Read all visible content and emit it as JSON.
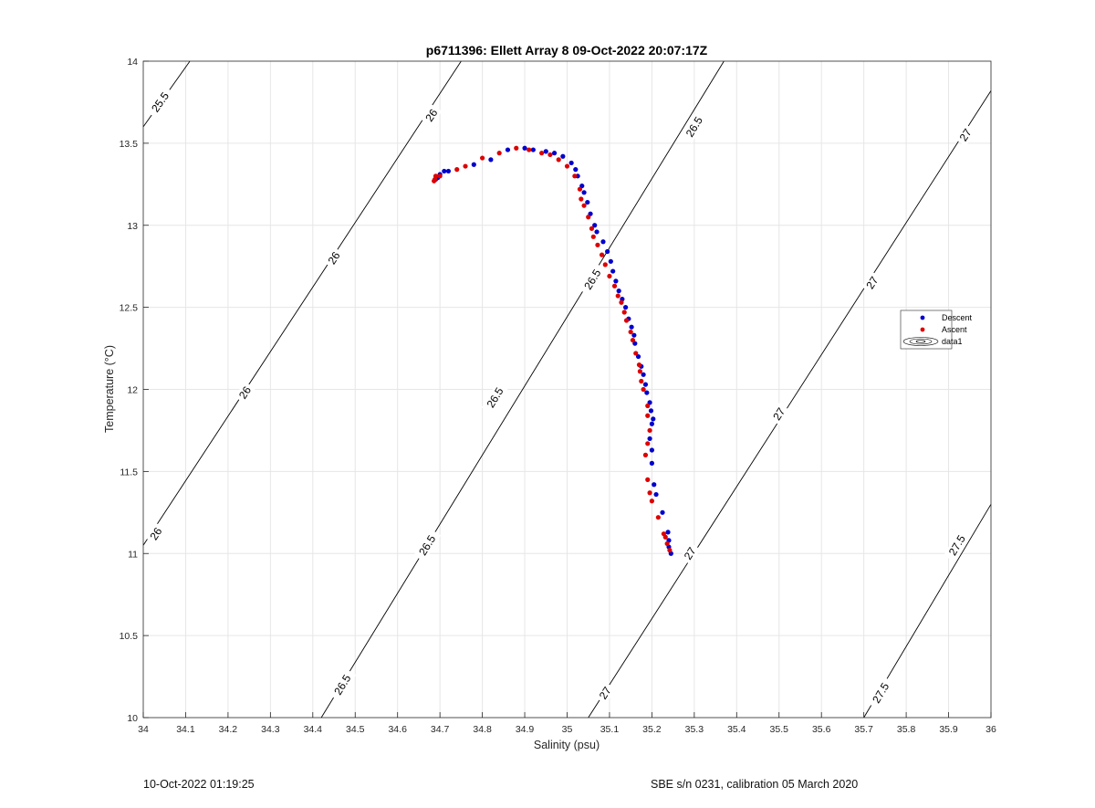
{
  "chart_data": {
    "type": "scatter",
    "title": "p6711396: Ellett Array 8 09-Oct-2022 20:07:17Z",
    "xlabel": "Salinity (psu)",
    "ylabel": "Temperature (°C)",
    "xlim": [
      34,
      36
    ],
    "ylim": [
      10,
      14
    ],
    "xticks": [
      34,
      34.1,
      34.2,
      34.3,
      34.4,
      34.5,
      34.6,
      34.7,
      34.8,
      34.9,
      35,
      35.1,
      35.2,
      35.3,
      35.4,
      35.5,
      35.6,
      35.7,
      35.8,
      35.9,
      36
    ],
    "xtick_labels": [
      "34",
      "34.1",
      "34.2",
      "34.3",
      "34.4",
      "34.5",
      "34.6",
      "34.7",
      "34.8",
      "34.9",
      "35",
      "35.1",
      "35.2",
      "35.3",
      "35.4",
      "35.5",
      "35.6",
      "35.7",
      "35.8",
      "35.9",
      "36"
    ],
    "yticks": [
      10,
      10.5,
      11,
      11.5,
      12,
      12.5,
      13,
      13.5,
      14
    ],
    "ytick_labels": [
      "10",
      "10.5",
      "11",
      "11.5",
      "12",
      "12.5",
      "13",
      "13.5",
      "14"
    ],
    "grid": true,
    "legend_position": "right",
    "series": [
      {
        "name": "Descent",
        "color": "#0000cc",
        "points": [
          [
            35.245,
            11.0
          ],
          [
            35.24,
            11.04
          ],
          [
            35.24,
            11.08
          ],
          [
            35.238,
            11.13
          ],
          [
            35.225,
            11.25
          ],
          [
            35.21,
            11.36
          ],
          [
            35.205,
            11.42
          ],
          [
            35.2,
            11.55
          ],
          [
            35.2,
            11.63
          ],
          [
            35.195,
            11.7
          ],
          [
            35.2,
            11.79
          ],
          [
            35.203,
            11.82
          ],
          [
            35.198,
            11.87
          ],
          [
            35.195,
            11.92
          ],
          [
            35.188,
            11.98
          ],
          [
            35.185,
            12.03
          ],
          [
            35.18,
            12.09
          ],
          [
            35.175,
            12.14
          ],
          [
            35.168,
            12.2
          ],
          [
            35.16,
            12.28
          ],
          [
            35.158,
            12.33
          ],
          [
            35.152,
            12.38
          ],
          [
            35.145,
            12.43
          ],
          [
            35.138,
            12.5
          ],
          [
            35.13,
            12.55
          ],
          [
            35.122,
            12.6
          ],
          [
            35.115,
            12.66
          ],
          [
            35.108,
            12.72
          ],
          [
            35.103,
            12.78
          ],
          [
            35.095,
            12.84
          ],
          [
            35.085,
            12.9
          ],
          [
            35.07,
            12.96
          ],
          [
            35.065,
            13.0
          ],
          [
            35.055,
            13.07
          ],
          [
            35.048,
            13.14
          ],
          [
            35.04,
            13.2
          ],
          [
            35.035,
            13.24
          ],
          [
            35.025,
            13.3
          ],
          [
            35.02,
            13.34
          ],
          [
            35.01,
            13.38
          ],
          [
            34.99,
            13.42
          ],
          [
            34.97,
            13.44
          ],
          [
            34.95,
            13.45
          ],
          [
            34.92,
            13.46
          ],
          [
            34.9,
            13.47
          ],
          [
            34.86,
            13.46
          ],
          [
            34.82,
            13.4
          ],
          [
            34.78,
            13.37
          ],
          [
            34.72,
            13.33
          ],
          [
            34.71,
            13.33
          ],
          [
            34.7,
            13.31
          ],
          [
            34.695,
            13.29
          ],
          [
            34.69,
            13.28
          ]
        ]
      },
      {
        "name": "Ascent",
        "color": "#dd0000",
        "points": [
          [
            35.242,
            11.02
          ],
          [
            35.236,
            11.06
          ],
          [
            35.232,
            11.1
          ],
          [
            35.228,
            11.12
          ],
          [
            35.215,
            11.22
          ],
          [
            35.2,
            11.32
          ],
          [
            35.195,
            11.37
          ],
          [
            35.19,
            11.45
          ],
          [
            35.185,
            11.6
          ],
          [
            35.19,
            11.67
          ],
          [
            35.195,
            11.75
          ],
          [
            35.19,
            11.84
          ],
          [
            35.19,
            11.9
          ],
          [
            35.18,
            12.0
          ],
          [
            35.175,
            12.05
          ],
          [
            35.172,
            12.11
          ],
          [
            35.17,
            12.15
          ],
          [
            35.162,
            12.22
          ],
          [
            35.155,
            12.3
          ],
          [
            35.15,
            12.35
          ],
          [
            35.14,
            12.42
          ],
          [
            35.135,
            12.47
          ],
          [
            35.128,
            12.53
          ],
          [
            35.12,
            12.57
          ],
          [
            35.112,
            12.63
          ],
          [
            35.1,
            12.69
          ],
          [
            35.09,
            12.76
          ],
          [
            35.082,
            12.82
          ],
          [
            35.072,
            12.88
          ],
          [
            35.062,
            12.93
          ],
          [
            35.058,
            12.98
          ],
          [
            35.05,
            13.05
          ],
          [
            35.04,
            13.12
          ],
          [
            35.033,
            13.16
          ],
          [
            35.03,
            13.22
          ],
          [
            35.018,
            13.3
          ],
          [
            35.0,
            13.36
          ],
          [
            34.98,
            13.4
          ],
          [
            34.96,
            13.43
          ],
          [
            34.94,
            13.44
          ],
          [
            34.91,
            13.46
          ],
          [
            34.88,
            13.47
          ],
          [
            34.84,
            13.44
          ],
          [
            34.8,
            13.41
          ],
          [
            34.76,
            13.36
          ],
          [
            34.74,
            13.34
          ],
          [
            34.7,
            13.3
          ],
          [
            34.69,
            13.3
          ],
          [
            34.688,
            13.28
          ],
          [
            34.686,
            13.27
          ]
        ]
      },
      {
        "name": "data1",
        "kind": "contour",
        "color": "#000000",
        "sigma_levels": [
          25.5,
          26,
          26.5,
          27,
          27.5
        ],
        "lines": [
          {
            "level": "25.5",
            "points": [
              [
                34.0,
                13.6
              ],
              [
                34.11,
                14.0
              ]
            ]
          },
          {
            "level": "26",
            "points": [
              [
                34.0,
                11.05
              ],
              [
                34.75,
                14.0
              ]
            ]
          },
          {
            "level": "26.5",
            "points": [
              [
                34.42,
                10.0
              ],
              [
                35.37,
                14.0
              ]
            ]
          },
          {
            "level": "27",
            "points": [
              [
                35.05,
                10.0
              ],
              [
                36.0,
                13.82
              ]
            ]
          },
          {
            "level": "27.5",
            "points": [
              [
                35.7,
                10.0
              ],
              [
                36.0,
                11.3
              ]
            ]
          }
        ],
        "labels": [
          {
            "text": "25.5",
            "at": [
              34.04,
              13.75
            ]
          },
          {
            "text": "26",
            "at": [
              34.68,
              13.67
            ]
          },
          {
            "text": "26",
            "at": [
              34.45,
              12.8
            ]
          },
          {
            "text": "26",
            "at": [
              34.24,
              11.98
            ]
          },
          {
            "text": "26",
            "at": [
              34.03,
              11.12
            ]
          },
          {
            "text": "26.5",
            "at": [
              35.3,
              13.6
            ]
          },
          {
            "text": "26.5",
            "at": [
              35.06,
              12.67
            ]
          },
          {
            "text": "26.5",
            "at": [
              34.83,
              11.95
            ]
          },
          {
            "text": "26.5",
            "at": [
              34.67,
              11.05
            ]
          },
          {
            "text": "26.5",
            "at": [
              34.47,
              10.2
            ]
          },
          {
            "text": "27",
            "at": [
              35.94,
              13.55
            ]
          },
          {
            "text": "27",
            "at": [
              35.72,
              12.65
            ]
          },
          {
            "text": "27",
            "at": [
              35.5,
              11.85
            ]
          },
          {
            "text": "27",
            "at": [
              35.29,
              11.0
            ]
          },
          {
            "text": "27",
            "at": [
              35.09,
              10.15
            ]
          },
          {
            "text": "27.5",
            "at": [
              35.92,
              11.05
            ]
          },
          {
            "text": "27.5",
            "at": [
              35.74,
              10.15
            ]
          }
        ]
      }
    ],
    "legend": [
      {
        "label": "Descent",
        "marker": "dot",
        "color": "#0000cc"
      },
      {
        "label": "Ascent",
        "marker": "dot",
        "color": "#dd0000"
      },
      {
        "label": "data1",
        "marker": "contour",
        "color": "#000000"
      }
    ]
  },
  "footer": {
    "left": "10-Oct-2022 01:19:25",
    "right": "SBE s/n 0231, calibration 05 March 2020"
  }
}
